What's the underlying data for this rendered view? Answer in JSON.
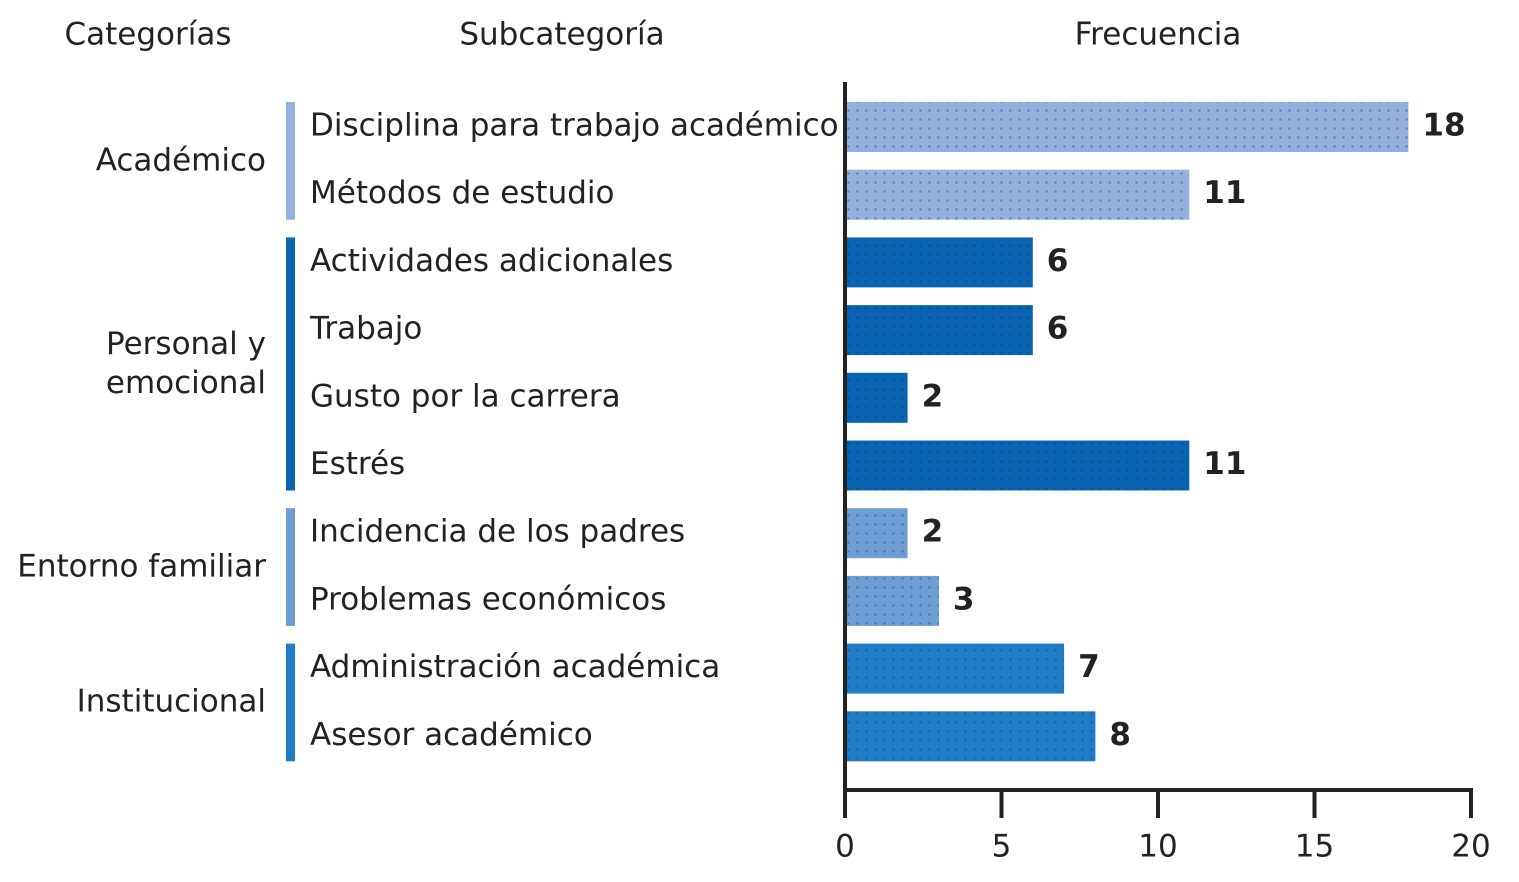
{
  "chart_data": {
    "type": "bar",
    "category_header": "Categorías",
    "subcategory_header": "Subcategoría",
    "xlabel": "Frecuencia",
    "groups": [
      {
        "name": "Académico",
        "color": "#94b0dc",
        "categories": [
          "Disciplina para trabajo académico",
          "Métodos de estudio"
        ],
        "values": [
          18,
          11
        ]
      },
      {
        "name": "Personal y\nemocional",
        "color": "#0a64b2",
        "categories": [
          "Actividades adicionales",
          "Trabajo",
          "Gusto por la carrera",
          "Estrés"
        ],
        "values": [
          6,
          6,
          2,
          11
        ]
      },
      {
        "name": "Entorno familiar",
        "color": "#6e9dd4",
        "categories": [
          "Incidencia de los padres",
          "Problemas económicos"
        ],
        "values": [
          2,
          3
        ]
      },
      {
        "name": "Institucional",
        "color": "#1f7cc5",
        "categories": [
          "Administración académica",
          "Asesor académico"
        ],
        "values": [
          7,
          8
        ]
      }
    ],
    "xlim": [
      0,
      20
    ],
    "xticks": [
      0,
      5,
      10,
      15,
      20
    ]
  }
}
